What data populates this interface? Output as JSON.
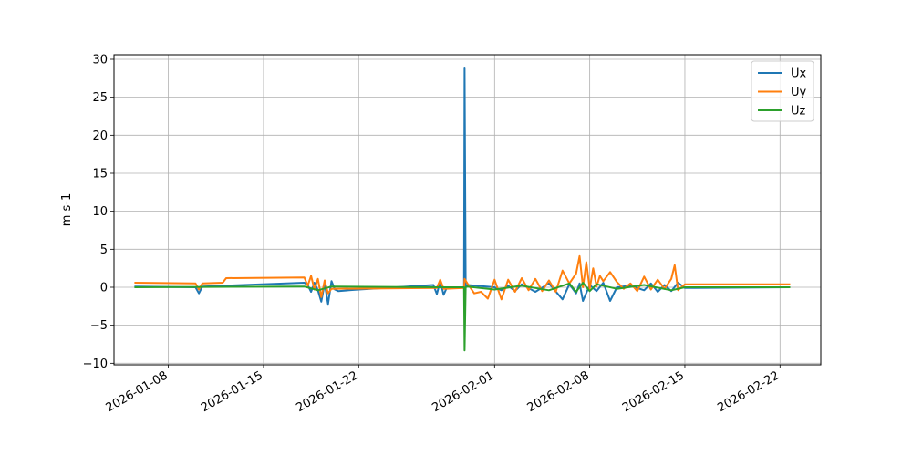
{
  "chart_data": {
    "type": "line",
    "title": "",
    "xlabel": "",
    "ylabel": "m s-1",
    "ylim": [
      -10.2,
      30.6
    ],
    "xlim": [
      "2026-01-04T00:00",
      "2026-02-25T00:00"
    ],
    "x_ticks": [
      "2026-01-08",
      "2026-01-15",
      "2026-01-22",
      "2026-02-01",
      "2026-02-08",
      "2026-02-15",
      "2026-02-22"
    ],
    "y_ticks": [
      30,
      25,
      20,
      15,
      10,
      5,
      0,
      -5,
      -10
    ],
    "grid": true,
    "legend_position": "top-right",
    "colors": {
      "Ux": "#1f77b4",
      "Uy": "#ff7f0e",
      "Uz": "#2ca02c"
    },
    "series": [
      {
        "name": "Ux",
        "x": [
          "2026-01-05T12:00",
          "2026-01-10T00:00",
          "2026-01-10T06:00",
          "2026-01-10T12:00",
          "2026-01-18T00:00",
          "2026-01-18T06:00",
          "2026-01-18T12:00",
          "2026-01-18T18:00",
          "2026-01-19T00:00",
          "2026-01-19T06:00",
          "2026-01-19T12:00",
          "2026-01-19T18:00",
          "2026-01-20T00:00",
          "2026-01-20T06:00",
          "2026-01-20T12:00",
          "2026-01-22T00:00",
          "2026-01-27T12:00",
          "2026-01-27T18:00",
          "2026-01-28T00:00",
          "2026-01-28T06:00",
          "2026-01-28T12:00",
          "2026-01-29T18:00",
          "2026-01-29T19:00",
          "2026-01-29T21:00",
          "2026-01-30T00:00",
          "2026-02-01T00:00",
          "2026-02-01T12:00",
          "2026-02-02T00:00",
          "2026-02-02T12:00",
          "2026-02-03T00:00",
          "2026-02-04T00:00",
          "2026-02-05T00:00",
          "2026-02-06T00:00",
          "2026-02-06T12:00",
          "2026-02-07T00:00",
          "2026-02-07T06:00",
          "2026-02-07T12:00",
          "2026-02-08T00:00",
          "2026-02-08T12:00",
          "2026-02-09T00:00",
          "2026-02-09T12:00",
          "2026-02-10T00:00",
          "2026-02-11T00:00",
          "2026-02-12T00:00",
          "2026-02-12T12:00",
          "2026-02-13T00:00",
          "2026-02-13T12:00",
          "2026-02-14T00:00",
          "2026-02-14T12:00",
          "2026-02-15T00:00",
          "2026-02-22T18:00"
        ],
        "values": [
          0.1,
          0.0,
          -0.8,
          0.1,
          0.6,
          0.3,
          -0.6,
          0.6,
          -0.4,
          -1.9,
          0.5,
          -2.2,
          0.8,
          -0.3,
          -0.5,
          -0.3,
          0.3,
          -0.9,
          0.8,
          -1.0,
          0.0,
          0.0,
          28.8,
          0.0,
          0.3,
          0.0,
          -0.4,
          0.2,
          -0.5,
          0.4,
          -0.6,
          0.5,
          -1.6,
          0.4,
          -0.8,
          0.5,
          -1.8,
          0.3,
          -0.5,
          0.6,
          -1.8,
          0.0,
          0.2,
          -0.4,
          0.5,
          -0.6,
          0.3,
          -0.5,
          0.6,
          -0.1,
          0.0
        ]
      },
      {
        "name": "Uy",
        "x": [
          "2026-01-05T12:00",
          "2026-01-10T00:00",
          "2026-01-10T06:00",
          "2026-01-10T12:00",
          "2026-01-12T00:00",
          "2026-01-12T06:00",
          "2026-01-18T00:00",
          "2026-01-18T06:00",
          "2026-01-18T12:00",
          "2026-01-18T18:00",
          "2026-01-19T00:00",
          "2026-01-19T06:00",
          "2026-01-19T12:00",
          "2026-01-19T18:00",
          "2026-01-20T00:00",
          "2026-01-27T18:00",
          "2026-01-28T00:00",
          "2026-01-28T06:00",
          "2026-01-29T18:00",
          "2026-01-29T19:00",
          "2026-01-30T00:00",
          "2026-01-30T12:00",
          "2026-01-31T00:00",
          "2026-01-31T12:00",
          "2026-02-01T00:00",
          "2026-02-01T12:00",
          "2026-02-02T00:00",
          "2026-02-02T12:00",
          "2026-02-03T00:00",
          "2026-02-03T12:00",
          "2026-02-04T00:00",
          "2026-02-04T12:00",
          "2026-02-05T00:00",
          "2026-02-05T12:00",
          "2026-02-06T00:00",
          "2026-02-06T12:00",
          "2026-02-07T00:00",
          "2026-02-07T06:00",
          "2026-02-07T12:00",
          "2026-02-07T18:00",
          "2026-02-08T00:00",
          "2026-02-08T06:00",
          "2026-02-08T12:00",
          "2026-02-08T18:00",
          "2026-02-09T00:00",
          "2026-02-09T12:00",
          "2026-02-10T00:00",
          "2026-02-10T12:00",
          "2026-02-11T00:00",
          "2026-02-11T12:00",
          "2026-02-12T00:00",
          "2026-02-12T12:00",
          "2026-02-13T00:00",
          "2026-02-13T12:00",
          "2026-02-14T00:00",
          "2026-02-14T06:00",
          "2026-02-14T12:00",
          "2026-02-15T00:00",
          "2026-02-22T18:00"
        ],
        "values": [
          0.6,
          0.5,
          -0.3,
          0.5,
          0.6,
          1.2,
          1.3,
          0.2,
          1.5,
          -0.3,
          1.1,
          -1.3,
          0.9,
          -0.8,
          -0.2,
          -0.1,
          1.0,
          -0.2,
          -0.1,
          1.1,
          0.5,
          -0.8,
          -0.6,
          -1.5,
          1.0,
          -1.6,
          1.0,
          -0.6,
          1.2,
          -0.4,
          1.1,
          -0.5,
          0.9,
          -0.6,
          2.2,
          0.5,
          1.8,
          4.1,
          0.0,
          3.3,
          -0.2,
          2.5,
          0.1,
          1.5,
          0.8,
          2.0,
          0.7,
          -0.2,
          0.5,
          -0.5,
          1.4,
          -0.3,
          1.0,
          -0.2,
          1.1,
          2.9,
          -0.4,
          0.4,
          0.4
        ]
      },
      {
        "name": "Uz",
        "x": [
          "2026-01-05T12:00",
          "2026-01-18T00:00",
          "2026-01-19T00:00",
          "2026-01-20T00:00",
          "2026-01-28T00:00",
          "2026-01-29T18:00",
          "2026-01-29T19:00",
          "2026-01-29T21:00",
          "2026-01-30T00:00",
          "2026-02-01T00:00",
          "2026-02-03T00:00",
          "2026-02-05T00:00",
          "2026-02-06T12:00",
          "2026-02-07T00:00",
          "2026-02-07T12:00",
          "2026-02-08T00:00",
          "2026-02-08T12:00",
          "2026-02-10T00:00",
          "2026-02-12T00:00",
          "2026-02-14T00:00",
          "2026-02-15T00:00",
          "2026-02-22T18:00"
        ],
        "values": [
          0.0,
          0.1,
          -0.4,
          0.1,
          0.0,
          0.0,
          -8.3,
          0.0,
          0.1,
          -0.3,
          0.2,
          -0.4,
          0.5,
          -0.6,
          0.6,
          -0.5,
          0.4,
          -0.2,
          0.3,
          -0.4,
          0.0,
          0.0
        ]
      }
    ]
  }
}
